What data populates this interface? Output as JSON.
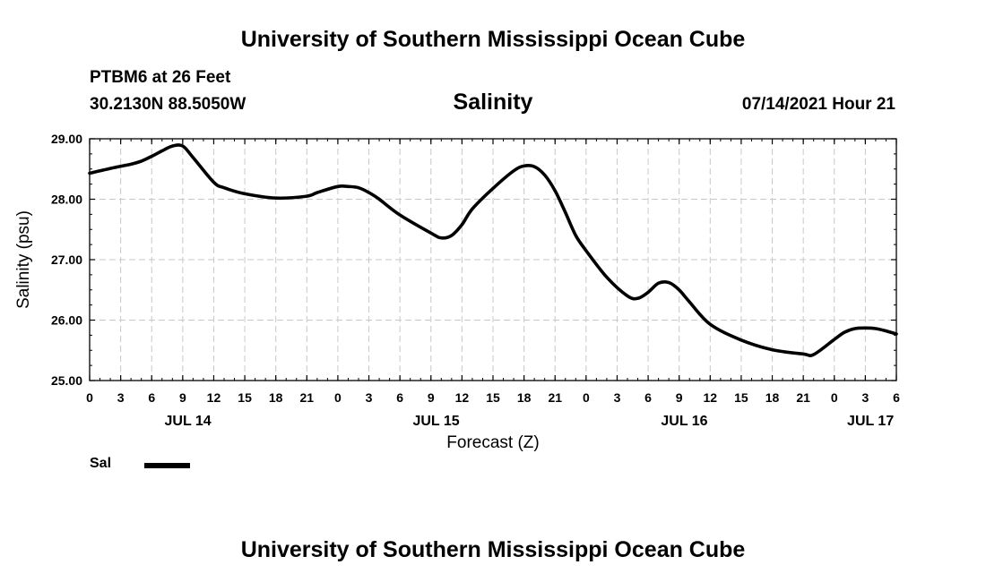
{
  "header": {
    "title": "University of Southern Mississippi Ocean Cube",
    "station": "PTBM6 at 26 Feet",
    "coords": "30.2130N  88.5050W",
    "chart_title": "Salinity",
    "timestamp": "07/14/2021 Hour 21"
  },
  "footer": {
    "title": "University of Southern Mississippi Ocean Cube"
  },
  "legend": {
    "label": "Sal"
  },
  "colors": {
    "line": "#000000",
    "grid": "#c8c8c8"
  },
  "chart_data": {
    "type": "line",
    "title": "Salinity",
    "xlabel": "Forecast (Z)",
    "ylabel": "Salinity (psu)",
    "xlim": [
      0,
      78
    ],
    "ylim": [
      25.0,
      29.0
    ],
    "grid": true,
    "y_ticks": [
      "25.00",
      "26.00",
      "27.00",
      "28.00",
      "29.00"
    ],
    "x_ticks": [
      "0",
      "3",
      "6",
      "9",
      "12",
      "15",
      "18",
      "21",
      "0",
      "3",
      "6",
      "9",
      "12",
      "15",
      "18",
      "21",
      "0",
      "3",
      "6",
      "9",
      "12",
      "15",
      "18",
      "21",
      "0",
      "3",
      "6"
    ],
    "date_labels": [
      {
        "hour": 9.5,
        "label": "JUL 14"
      },
      {
        "hour": 33.5,
        "label": "JUL 15"
      },
      {
        "hour": 57.5,
        "label": "JUL 16"
      },
      {
        "hour": 75.5,
        "label": "JUL 17"
      }
    ],
    "series": [
      {
        "name": "Sal",
        "x": [
          0,
          2,
          4,
          5,
          6,
          7,
          8,
          9,
          10,
          12,
          13,
          15,
          18,
          21,
          22,
          24,
          25,
          26,
          27,
          28,
          30,
          33,
          34,
          35,
          36,
          37,
          39,
          41,
          42,
          43,
          44,
          45,
          46,
          47,
          48,
          50,
          52,
          53,
          54,
          55,
          56,
          57,
          58,
          60,
          63,
          66,
          69,
          70,
          72,
          73,
          74,
          75,
          76,
          77,
          78
        ],
        "values": [
          28.43,
          28.51,
          28.58,
          28.63,
          28.71,
          28.8,
          28.88,
          28.88,
          28.69,
          28.28,
          28.19,
          28.09,
          28.02,
          28.05,
          28.11,
          28.21,
          28.21,
          28.19,
          28.11,
          28.0,
          27.74,
          27.44,
          27.36,
          27.4,
          27.58,
          27.84,
          28.18,
          28.47,
          28.55,
          28.54,
          28.4,
          28.14,
          27.78,
          27.4,
          27.15,
          26.71,
          26.4,
          26.36,
          26.46,
          26.61,
          26.62,
          26.5,
          26.3,
          25.93,
          25.67,
          25.51,
          25.44,
          25.43,
          25.68,
          25.8,
          25.86,
          25.87,
          25.86,
          25.82,
          25.77
        ]
      }
    ]
  }
}
